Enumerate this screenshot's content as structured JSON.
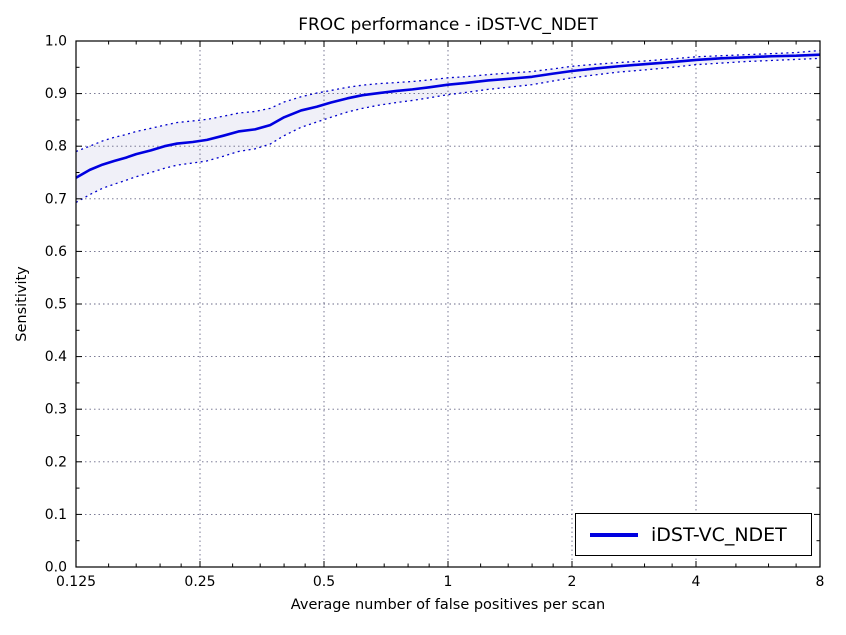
{
  "chart_data": {
    "type": "line",
    "title": "FROC performance - iDST-VC_NDET",
    "xlabel": "Average number of false positives per scan",
    "ylabel": "Sensitivity",
    "x_scale": "log2",
    "xlim": [
      0.125,
      8
    ],
    "ylim": [
      0.0,
      1.0
    ],
    "grid": true,
    "x_ticks": [
      0.125,
      0.25,
      0.5,
      1,
      2,
      4,
      8
    ],
    "x_tick_labels": [
      "0.125",
      "0.25",
      "0.5",
      "1",
      "2",
      "4",
      "8"
    ],
    "x_minor_ticks": [
      0.15,
      0.175,
      0.2,
      0.225,
      0.3,
      0.35,
      0.4,
      0.45,
      0.6,
      0.7,
      0.8,
      0.9,
      1.2,
      1.4,
      1.6,
      1.8,
      2.5,
      3,
      3.5,
      5,
      6,
      7
    ],
    "y_ticks": [
      0.0,
      0.1,
      0.2,
      0.3,
      0.4,
      0.5,
      0.6,
      0.7,
      0.8,
      0.9,
      1.0
    ],
    "y_tick_labels": [
      "0.0",
      "0.1",
      "0.2",
      "0.3",
      "0.4",
      "0.5",
      "0.6",
      "0.7",
      "0.8",
      "0.9",
      "1.0"
    ],
    "y_minor_ticks": [
      0.05,
      0.15,
      0.25,
      0.35,
      0.45,
      0.55,
      0.65,
      0.75,
      0.85,
      0.95
    ],
    "legend": {
      "label": "iDST-VC_NDET",
      "position": "lower right"
    },
    "colors": {
      "main_line": "#0000e0",
      "bound_line": "#0000cc",
      "band_fill": "#8888cc",
      "grid": "#44446a",
      "axis": "#000000"
    },
    "x": [
      0.125,
      0.135,
      0.145,
      0.155,
      0.165,
      0.175,
      0.19,
      0.205,
      0.22,
      0.24,
      0.26,
      0.285,
      0.31,
      0.34,
      0.37,
      0.4,
      0.44,
      0.48,
      0.52,
      0.57,
      0.62,
      0.68,
      0.75,
      0.82,
      0.9,
      1.0,
      1.1,
      1.25,
      1.4,
      1.6,
      1.8,
      2.0,
      2.3,
      2.6,
      3.0,
      3.5,
      4.0,
      4.6,
      5.3,
      6.1,
      7.0,
      8.0
    ],
    "series": [
      {
        "name": "iDST-VC_NDET",
        "role": "mean",
        "style": "solid",
        "width": 2.6,
        "y": [
          0.74,
          0.755,
          0.765,
          0.772,
          0.778,
          0.785,
          0.792,
          0.8,
          0.805,
          0.808,
          0.812,
          0.82,
          0.828,
          0.832,
          0.84,
          0.855,
          0.868,
          0.875,
          0.883,
          0.891,
          0.897,
          0.901,
          0.905,
          0.908,
          0.912,
          0.917,
          0.92,
          0.925,
          0.928,
          0.932,
          0.938,
          0.943,
          0.948,
          0.952,
          0.956,
          0.96,
          0.964,
          0.967,
          0.969,
          0.971,
          0.972,
          0.974
        ]
      },
      {
        "name": "upper confidence bound",
        "role": "upper",
        "style": "dotted",
        "width": 1.3,
        "y": [
          0.79,
          0.8,
          0.81,
          0.817,
          0.822,
          0.828,
          0.834,
          0.84,
          0.845,
          0.848,
          0.851,
          0.857,
          0.863,
          0.866,
          0.872,
          0.884,
          0.894,
          0.901,
          0.906,
          0.912,
          0.916,
          0.919,
          0.921,
          0.923,
          0.926,
          0.93,
          0.932,
          0.936,
          0.939,
          0.942,
          0.947,
          0.952,
          0.956,
          0.959,
          0.962,
          0.966,
          0.97,
          0.972,
          0.974,
          0.976,
          0.978,
          0.982
        ]
      },
      {
        "name": "lower confidence bound",
        "role": "lower",
        "style": "dotted",
        "width": 1.3,
        "y": [
          0.693,
          0.708,
          0.72,
          0.728,
          0.735,
          0.742,
          0.75,
          0.758,
          0.764,
          0.768,
          0.772,
          0.781,
          0.79,
          0.795,
          0.804,
          0.82,
          0.836,
          0.846,
          0.855,
          0.865,
          0.872,
          0.878,
          0.883,
          0.887,
          0.892,
          0.898,
          0.902,
          0.908,
          0.912,
          0.917,
          0.924,
          0.93,
          0.936,
          0.941,
          0.945,
          0.95,
          0.955,
          0.958,
          0.961,
          0.963,
          0.965,
          0.967
        ]
      }
    ],
    "band": {
      "upper_series": 1,
      "lower_series": 2,
      "opacity": 0.13
    }
  }
}
